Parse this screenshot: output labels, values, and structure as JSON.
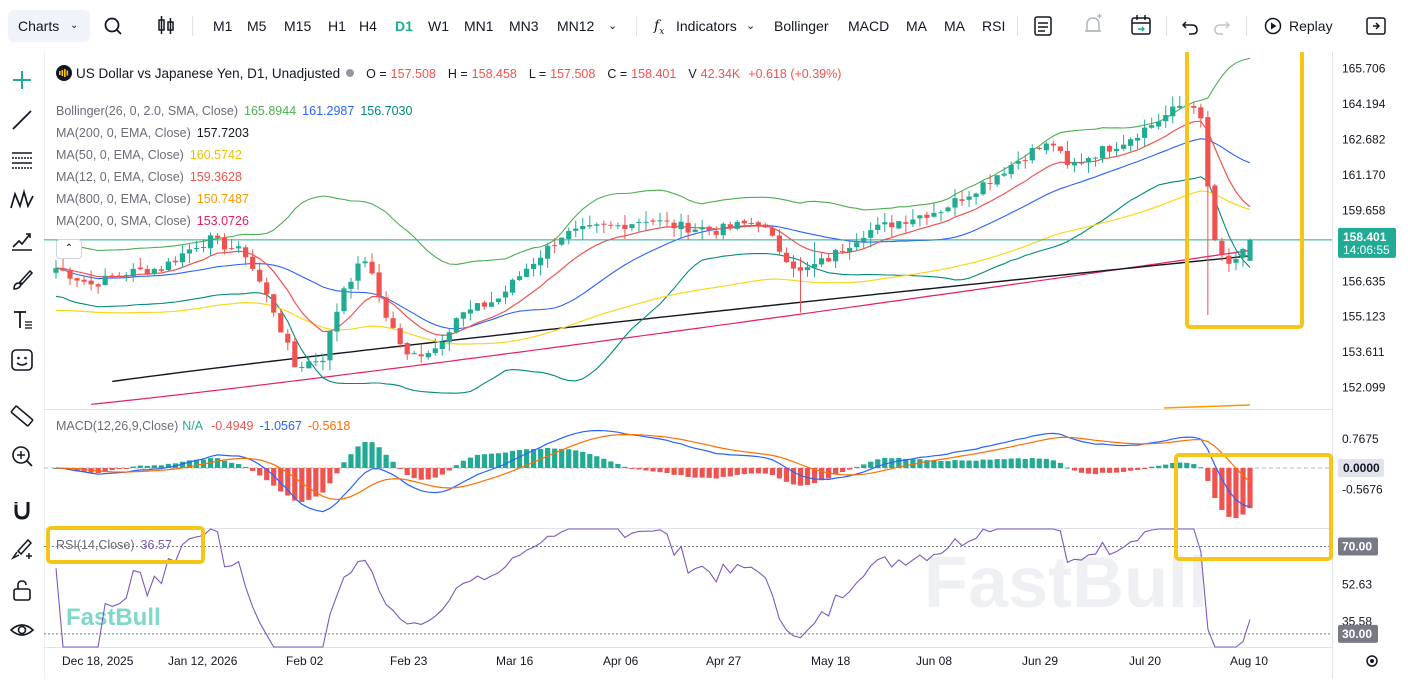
{
  "toolbar": {
    "charts_label": "Charts",
    "timeframes": [
      "M1",
      "M5",
      "M15",
      "H1",
      "H4",
      "D1",
      "W1",
      "MN1",
      "MN3",
      "MN12"
    ],
    "active_timeframe": "D1",
    "indicators_label": "Indicators",
    "quick_indicators": [
      "Bollinger",
      "MACD",
      "MA",
      "MA",
      "RSI"
    ],
    "replay_label": "Replay"
  },
  "symbol": {
    "name": "US Dollar vs Japanese Yen, D1, Unadjusted",
    "open_label": "O =",
    "open": "157.508",
    "high_label": "H =",
    "high": "158.458",
    "low_label": "L =",
    "low": "157.508",
    "close_label": "C =",
    "close": "158.401",
    "volume_label": "V",
    "volume": "42.34K",
    "change": "+0.618 (+0.39%)"
  },
  "indicators": [
    {
      "label": "Bollinger(26, 0, 2.0, SMA, Close)",
      "values": [
        "165.8944",
        "161.2987",
        "156.7030"
      ],
      "colors": [
        "#4caf50",
        "#2962ff",
        "#00897b"
      ]
    },
    {
      "label": "MA(200, 0, EMA, Close)",
      "values": [
        "157.7203"
      ],
      "colors": [
        "#131722"
      ]
    },
    {
      "label": "MA(50, 0, EMA, Close)",
      "values": [
        "160.5742"
      ],
      "colors": [
        "#e6c300"
      ]
    },
    {
      "label": "MA(12, 0, EMA, Close)",
      "values": [
        "159.3628"
      ],
      "colors": [
        "#ef5350"
      ]
    },
    {
      "label": "MA(800, 0, EMA, Close)",
      "values": [
        "150.7487"
      ],
      "colors": [
        "#ff9800"
      ]
    },
    {
      "label": "MA(200, 0, SMA, Close)",
      "values": [
        "153.0726"
      ],
      "colors": [
        "#e91e63"
      ]
    }
  ],
  "macd": {
    "label": "MACD(12,26,9,Close)",
    "na": "N/A",
    "values": [
      "-0.4949",
      "-1.0567",
      "-0.5618"
    ],
    "colors": [
      "#ef5350",
      "#2962ff",
      "#ff6d00"
    ]
  },
  "rsi": {
    "label": "RSI(14,Close)",
    "value": "36.57"
  },
  "price_axis": [
    "165.706",
    "164.194",
    "162.682",
    "161.170",
    "159.658",
    "158.401",
    "156.635",
    "155.123",
    "153.611",
    "152.099"
  ],
  "current_price": {
    "price": "158.401",
    "countdown": "14:06:55"
  },
  "macd_axis": [
    "0.7675",
    "0.0000",
    "-0.5676"
  ],
  "rsi_axis": [
    "70.00",
    "52.63",
    "35.58",
    "30.00"
  ],
  "time_axis": [
    "Dec 18, 2025",
    "Jan 12, 2026",
    "Feb 02",
    "Feb 23",
    "Mar 16",
    "Apr 06",
    "Apr 27",
    "May 18",
    "Jun 08",
    "Jun 29",
    "Jul 20",
    "Aug 10"
  ],
  "watermark": "FastBull",
  "colors": {
    "up": "#22ab94",
    "down": "#ef5350",
    "accent": "#22ab94",
    "highlight": "#f5c518"
  }
}
